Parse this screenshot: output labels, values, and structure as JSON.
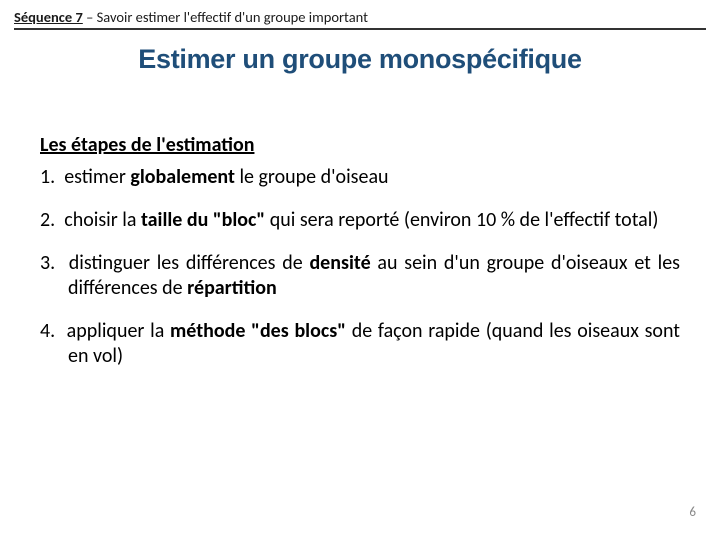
{
  "header": {
    "sequence_label": "Séquence 7",
    "separator": " – ",
    "rest": "Savoir estimer l'effectif d'un groupe important"
  },
  "title": {
    "text": "Estimer un groupe monospécifique",
    "color": "#1f4e79",
    "font_size_pt": 27,
    "font_weight": 900
  },
  "subtitle": {
    "text": "Les étapes de l'estimation",
    "font_size_pt": 20,
    "font_weight": 700,
    "underline": true
  },
  "steps": [
    {
      "num": "1.",
      "pre": "estimer ",
      "bold1": "globalement",
      "post": " le groupe d'oiseau"
    },
    {
      "num": "2.",
      "pre": "choisir la ",
      "bold1": "taille du \"bloc\"",
      "post": " qui sera reporté (environ 10 % de l'effectif total)"
    },
    {
      "num": "3.",
      "pre": "distinguer les différences de ",
      "bold1": "densité",
      "mid": " au sein d'un groupe d'oiseaux et les différences de ",
      "bold2": "répartition",
      "post": ""
    },
    {
      "num": "4.",
      "pre": "appliquer la ",
      "bold1": "méthode \"des blocs\"",
      "post": " de façon rapide (quand les oiseaux sont en vol)"
    }
  ],
  "page_number": "6",
  "colors": {
    "text": "#000000",
    "header_rule": "#333333",
    "title": "#1f4e79",
    "pagenum": "#888888",
    "background": "#ffffff"
  },
  "typography": {
    "body_font": "Calibri, Arial, sans-serif",
    "title_font": "Arial, sans-serif",
    "body_size_pt": 20,
    "header_size_pt": 14.5
  }
}
